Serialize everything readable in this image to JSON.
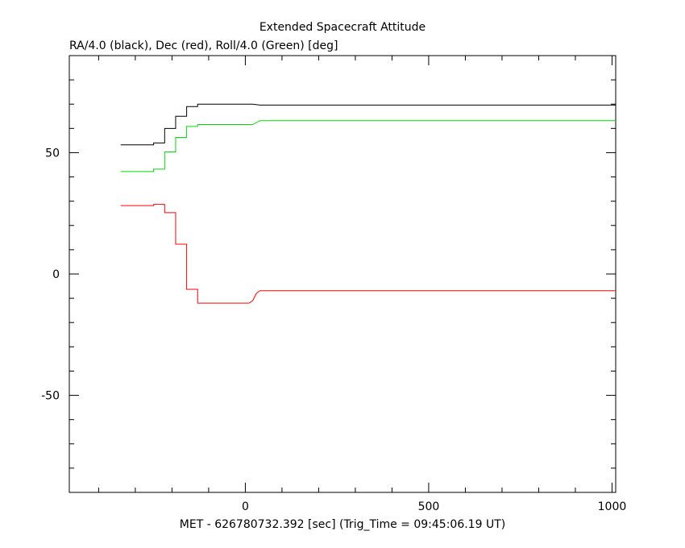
{
  "chart_data": {
    "type": "line",
    "title": "Extended Spacecraft Attitude",
    "subtitle": "RA/4.0 (black), Dec (red), Roll/4.0 (Green) [deg]",
    "xlabel": "MET - 626780732.392 [sec] (Trig_Time = 09:45:06.19 UT)",
    "ylabel": "",
    "xlim": [
      -480,
      1010
    ],
    "ylim": [
      -90,
      90
    ],
    "x_ticks": [
      0,
      500,
      1000
    ],
    "y_ticks": [
      -50,
      0,
      50
    ],
    "x_tick_labels": [
      "0",
      "500",
      "1000"
    ],
    "y_tick_labels": [
      "-50",
      "0",
      "50"
    ],
    "grid": false,
    "series": [
      {
        "color": "#000000",
        "step": true,
        "points": [
          [
            -340,
            53.2
          ],
          [
            -250,
            53.2
          ],
          [
            -250,
            54
          ],
          [
            -220,
            54
          ],
          [
            -220,
            60
          ],
          [
            -190,
            60
          ],
          [
            -190,
            65
          ],
          [
            -160,
            65
          ],
          [
            -160,
            69
          ],
          [
            -130,
            69
          ],
          [
            -130,
            70
          ],
          [
            20,
            70
          ],
          [
            40,
            69.6
          ],
          [
            1010,
            69.6
          ]
        ]
      },
      {
        "color": "#ff0000",
        "step": true,
        "points": [
          [
            -340,
            28.2
          ],
          [
            -250,
            28.2
          ],
          [
            -250,
            28.7
          ],
          [
            -220,
            28.7
          ],
          [
            -220,
            25.3
          ],
          [
            -190,
            25.3
          ],
          [
            -190,
            12.3
          ],
          [
            -160,
            12.3
          ],
          [
            -160,
            -6.3
          ],
          [
            -130,
            -6.3
          ],
          [
            -130,
            -12
          ],
          [
            10,
            -12
          ],
          [
            20,
            -11
          ],
          [
            30,
            -8
          ],
          [
            40,
            -6.9
          ],
          [
            1010,
            -6.9
          ]
        ]
      },
      {
        "color": "#00dd00",
        "step": true,
        "points": [
          [
            -340,
            42.2
          ],
          [
            -250,
            42.2
          ],
          [
            -250,
            43.2
          ],
          [
            -220,
            43.2
          ],
          [
            -220,
            50.3
          ],
          [
            -190,
            50.3
          ],
          [
            -190,
            56.3
          ],
          [
            -160,
            56.3
          ],
          [
            -160,
            60.8
          ],
          [
            -130,
            60.8
          ],
          [
            -130,
            61.6
          ],
          [
            20,
            61.6
          ],
          [
            40,
            63.2
          ],
          [
            1010,
            63.2
          ]
        ]
      }
    ]
  }
}
